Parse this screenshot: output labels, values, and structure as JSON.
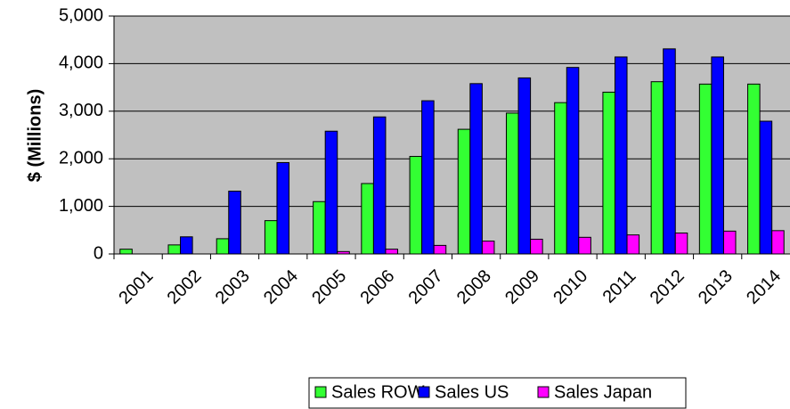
{
  "chart_data": {
    "type": "bar",
    "ylabel": "$ (Millions)",
    "categories": [
      "2001",
      "2002",
      "2003",
      "2004",
      "2005",
      "2006",
      "2007",
      "2008",
      "2009",
      "2010",
      "2011",
      "2012",
      "2013",
      "2014"
    ],
    "series": [
      {
        "name": "Sales ROW",
        "color": "#33ff33",
        "values": [
          100,
          190,
          320,
          700,
          1100,
          1480,
          2050,
          2620,
          2960,
          3180,
          3400,
          3620,
          3570,
          3570
        ]
      },
      {
        "name": "Sales US",
        "color": "#0000ff",
        "values": [
          0,
          360,
          1320,
          1920,
          2580,
          2880,
          3220,
          3580,
          3700,
          3920,
          4140,
          4310,
          4140,
          2790
        ]
      },
      {
        "name": "Sales Japan",
        "color": "#ff00ff",
        "values": [
          0,
          0,
          0,
          0,
          50,
          100,
          180,
          270,
          310,
          350,
          400,
          440,
          480,
          490
        ]
      }
    ],
    "ylim": [
      0,
      5000
    ],
    "yticks": [
      0,
      {
        "value": 1000,
        "label": "1,000"
      },
      {
        "value": 2000,
        "label": "2,000"
      },
      {
        "value": 3000,
        "label": "3,000"
      },
      {
        "value": 4000,
        "label": "4,000"
      },
      {
        "value": 5000,
        "label": "5,000"
      }
    ],
    "grid": true,
    "legend": "bottom"
  }
}
